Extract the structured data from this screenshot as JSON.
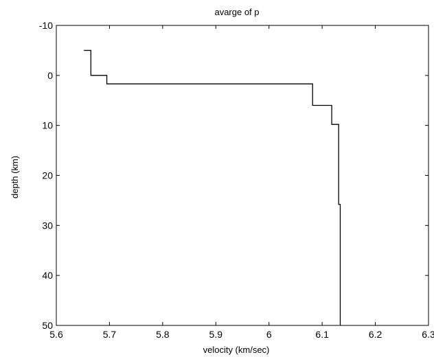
{
  "chart_data": {
    "type": "line",
    "title": "avarge of p",
    "xlabel": "velocity (km/sec)",
    "ylabel": "depth (km)",
    "xlim": [
      5.6,
      6.3
    ],
    "ylim": [
      -10,
      50
    ],
    "y_reversed": true,
    "grid": false,
    "x_ticks": [
      5.6,
      5.7,
      5.8,
      5.9,
      6.0,
      6.1,
      6.2,
      6.3
    ],
    "x_tick_labels": [
      "5.6",
      "5.7",
      "5.8",
      "5.9",
      "6",
      "6.1",
      "6.2",
      "6.3"
    ],
    "y_ticks": [
      -10,
      0,
      10,
      20,
      30,
      40,
      50
    ],
    "y_tick_labels": [
      "-10",
      "0",
      "10",
      "20",
      "30",
      "40",
      "50"
    ],
    "series": [
      {
        "color": "#000000",
        "points": [
          [
            5.652,
            -5.0
          ],
          [
            5.665,
            -5.0
          ],
          [
            5.665,
            0.0
          ],
          [
            5.695,
            0.0
          ],
          [
            5.695,
            1.7
          ],
          [
            6.082,
            1.7
          ],
          [
            6.082,
            6.0
          ],
          [
            6.118,
            6.0
          ],
          [
            6.118,
            9.8
          ],
          [
            6.131,
            9.8
          ],
          [
            6.131,
            25.8
          ],
          [
            6.134,
            25.8
          ],
          [
            6.134,
            50.0
          ]
        ]
      }
    ]
  }
}
